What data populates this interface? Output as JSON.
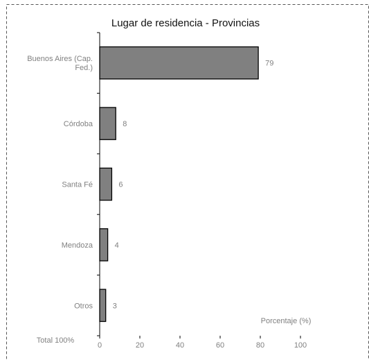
{
  "chart_data": {
    "type": "bar",
    "orientation": "horizontal",
    "title": "Lugar de residencia - Provincias",
    "xlabel": "Porcentaje (%)",
    "ylabel": "",
    "categories": [
      [
        "Buenos Aires (Cap.",
        "Fed.)"
      ],
      [
        "Córdoba"
      ],
      [
        "Santa Fé"
      ],
      [
        "Mendoza"
      ],
      [
        "Otros"
      ]
    ],
    "values": [
      79,
      8,
      6,
      4,
      3
    ],
    "data_labels": [
      "79",
      "8",
      "6",
      "4",
      "3"
    ],
    "xlim": [
      0,
      100
    ],
    "xticks": [
      0,
      20,
      40,
      60,
      80,
      100
    ],
    "xtick_labels": [
      "0",
      "20",
      "40",
      "60",
      "80",
      "100"
    ],
    "footnote": "Total 100%",
    "grid": false,
    "legend": "none",
    "colors": {
      "bar_fill": "#808080",
      "bar_stroke": "#000000",
      "axis": "#000000",
      "label_text": "#808080",
      "frame": "#555555"
    }
  }
}
